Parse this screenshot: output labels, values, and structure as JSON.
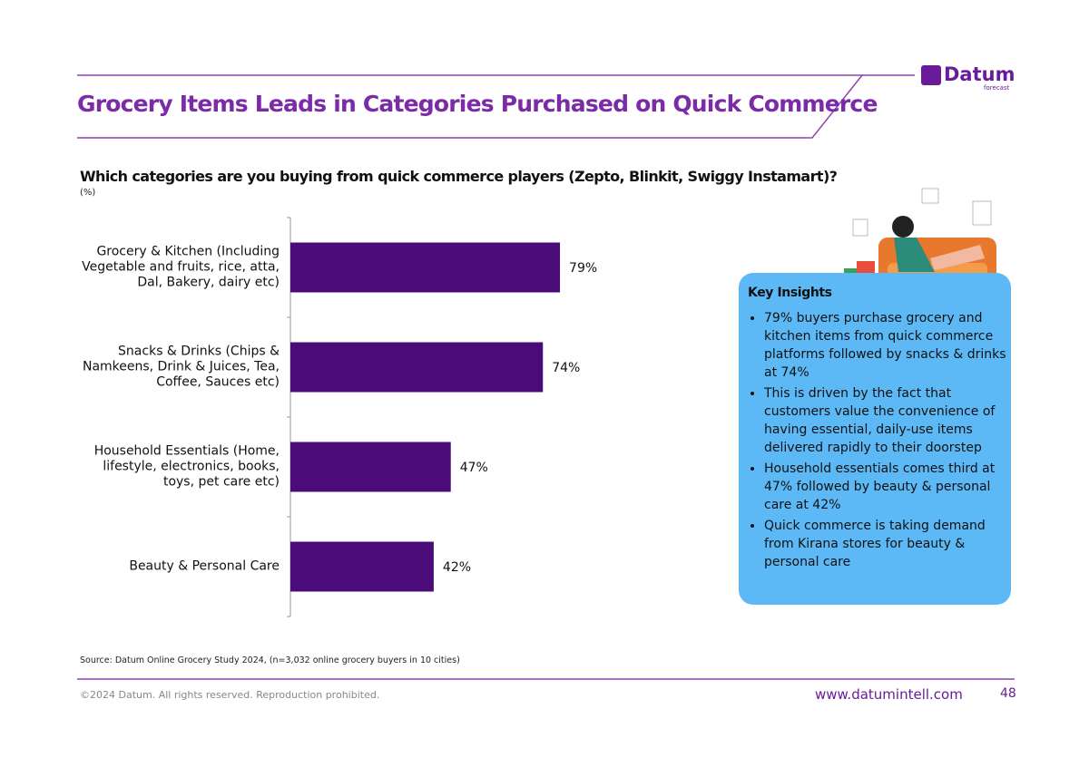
{
  "header": {
    "title": "Grocery Items Leads in Categories Purchased on Quick Commerce",
    "logo": "Datum",
    "logo_sub": "forecast"
  },
  "chart_data": {
    "type": "bar",
    "orientation": "horizontal",
    "title": "Which categories are you buying from quick commerce players (Zepto, Blinkit, Swiggy Instamart)?",
    "unit_label": "(%)",
    "categories": [
      "Grocery & Kitchen (Including Vegetable and fruits, rice, atta, Dal, Bakery, dairy etc)",
      "Snacks & Drinks (Chips & Namkeens, Drink & Juices, Tea, Coffee, Sauces etc)",
      "Household Essentials (Home, lifestyle, electronics, books, toys, pet care etc)",
      "Beauty & Personal Care"
    ],
    "values": [
      79,
      74,
      47,
      42
    ],
    "value_labels": [
      "79%",
      "74%",
      "47%",
      "42%"
    ],
    "color": "#4b0c7a"
  },
  "insights": {
    "title": "Key Insights",
    "bullets": [
      "79% buyers purchase grocery and kitchen items from quick commerce platforms followed by snacks & drinks at 74%",
      "This is driven by the fact that customers value the convenience of having essential, daily-use items delivered rapidly to their doorstep",
      "Household essentials comes third at 47% followed by beauty & personal care at 42%",
      "Quick commerce is taking demand from Kirana stores for beauty & personal care"
    ]
  },
  "footer": {
    "source": "Source: Datum Online Grocery Study 2024, (n=3,032 online grocery buyers in 10 cities)",
    "copyright": "©2024 Datum. All rights reserved. Reproduction prohibited.",
    "website": "www.datumintell.com",
    "page": "48"
  }
}
